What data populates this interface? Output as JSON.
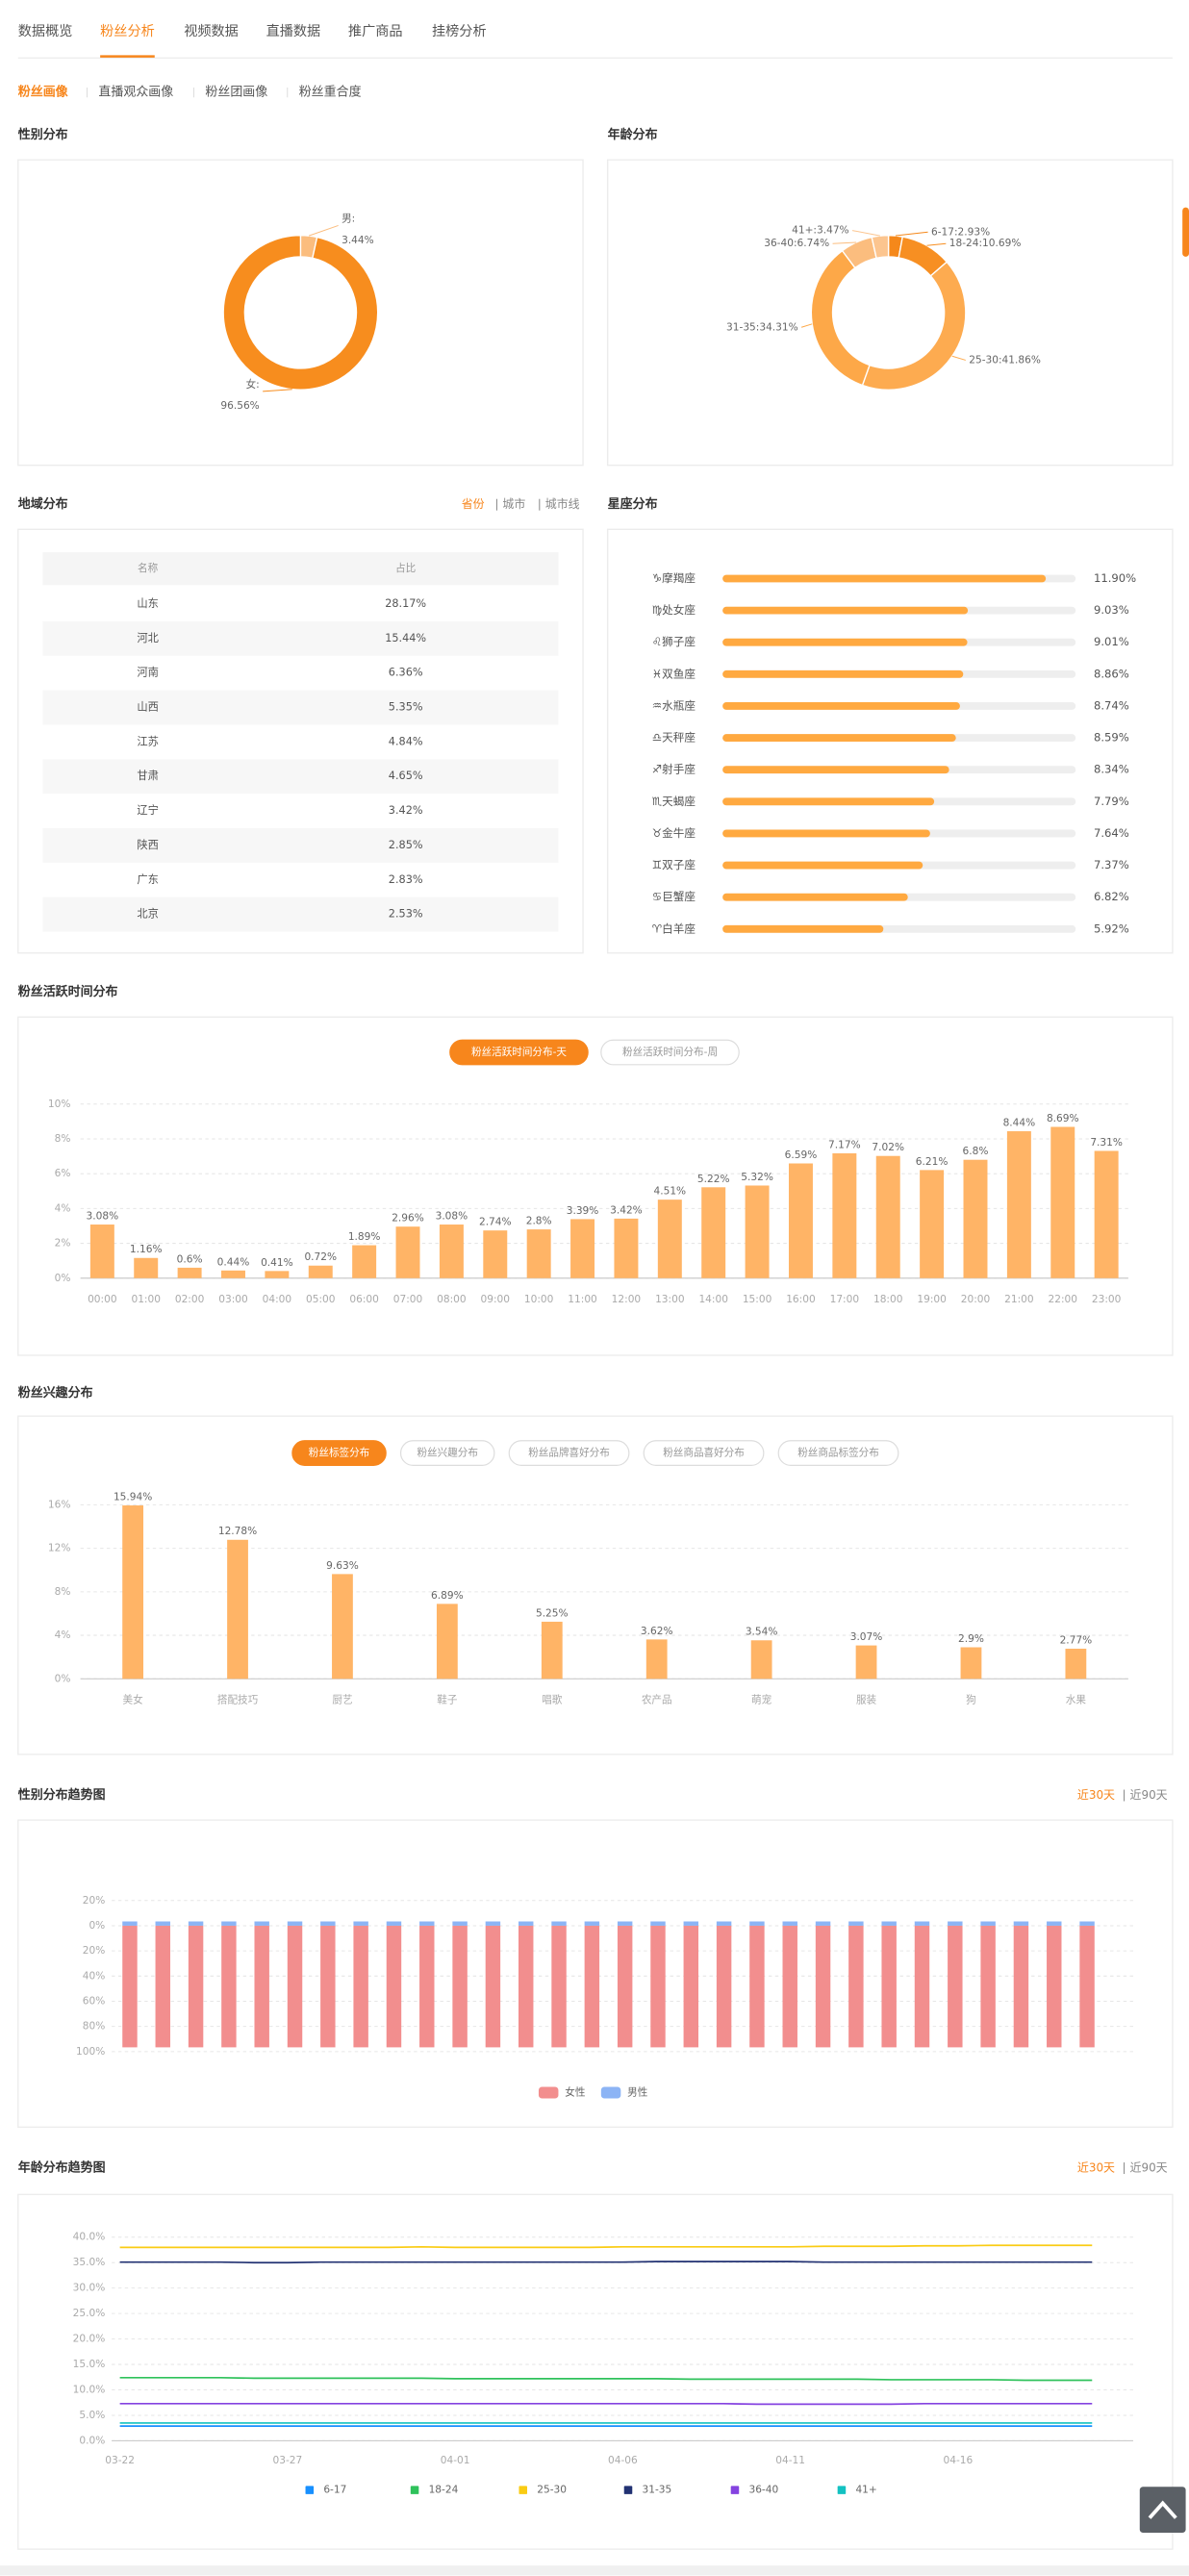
{
  "tabs": [
    {
      "label": "数据概览"
    },
    {
      "label": "粉丝分析",
      "active": true
    },
    {
      "label": "视频数据"
    },
    {
      "label": "直播数据"
    },
    {
      "label": "推广商品"
    },
    {
      "label": "挂榜分析"
    }
  ],
  "sub_tabs": [
    {
      "label": "粉丝画像",
      "active": true
    },
    {
      "label": "直播观众画像"
    },
    {
      "label": "粉丝团画像"
    },
    {
      "label": "粉丝重合度"
    }
  ],
  "chart_data": [
    {
      "type": "pie",
      "title": "性别分布",
      "categories": [
        "男:",
        "女:"
      ],
      "values": [
        3.44,
        96.56
      ],
      "value_labels": [
        "3.44%",
        "96.56%"
      ],
      "colors": [
        "#fbbd7e",
        "#f78d1e"
      ]
    },
    {
      "type": "pie",
      "title": "年龄分布",
      "values": [
        2.93,
        10.69,
        41.86,
        34.31,
        6.74,
        3.47
      ],
      "value_labels": [
        "6-17:2.93%",
        "18-24:10.69%",
        "25-30:41.86%",
        "31-35:34.31%",
        "36-40:6.74%",
        "41+:3.47%"
      ],
      "colors": [
        "#f5881a",
        "#f78f22",
        "#fdab50",
        "#fda848",
        "#fbbd7e",
        "#fcc58f"
      ]
    },
    {
      "type": "table",
      "title": "地域分布",
      "filters": [
        {
          "label": "省份",
          "active": true
        },
        {
          "label": "城市"
        },
        {
          "label": "城市线"
        }
      ],
      "columns": [
        "名称",
        "占比"
      ],
      "rows": [
        [
          "山东",
          "28.17%"
        ],
        [
          "河北",
          "15.44%"
        ],
        [
          "河南",
          "6.36%"
        ],
        [
          "山西",
          "5.35%"
        ],
        [
          "江苏",
          "4.84%"
        ],
        [
          "甘肃",
          "4.65%"
        ],
        [
          "辽宁",
          "3.42%"
        ],
        [
          "陕西",
          "2.85%"
        ],
        [
          "广东",
          "2.83%"
        ],
        [
          "北京",
          "2.53%"
        ]
      ]
    },
    {
      "type": "bar",
      "horizontal": true,
      "title": "星座分布",
      "categories": [
        "♑摩羯座",
        "♍处女座",
        "♌狮子座",
        "♓双鱼座",
        "♒水瓶座",
        "♎天秤座",
        "♐射手座",
        "♏天蝎座",
        "♉金牛座",
        "♊双子座",
        "♋巨蟹座",
        "♈白羊座"
      ],
      "values": [
        11.9,
        9.03,
        9.01,
        8.86,
        8.74,
        8.59,
        8.34,
        7.79,
        7.64,
        7.37,
        6.82,
        5.92
      ],
      "value_labels": [
        "11.90%",
        "9.03%",
        "9.01%",
        "8.86%",
        "8.74%",
        "8.59%",
        "8.34%",
        "7.79%",
        "7.64%",
        "7.37%",
        "6.82%",
        "5.92%"
      ],
      "xlim": [
        0,
        13
      ],
      "color": "#ffa940"
    },
    {
      "type": "bar",
      "title": "粉丝活跃时间分布",
      "toggles": [
        {
          "label": "粉丝活跃时间分布-天",
          "active": true
        },
        {
          "label": "粉丝活跃时间分布-周"
        }
      ],
      "categories": [
        "00:00",
        "01:00",
        "02:00",
        "03:00",
        "04:00",
        "05:00",
        "06:00",
        "07:00",
        "08:00",
        "09:00",
        "10:00",
        "11:00",
        "12:00",
        "13:00",
        "14:00",
        "15:00",
        "16:00",
        "17:00",
        "18:00",
        "19:00",
        "20:00",
        "21:00",
        "22:00",
        "23:00"
      ],
      "values": [
        3.08,
        1.16,
        0.6,
        0.44,
        0.41,
        0.72,
        1.89,
        2.96,
        3.08,
        2.74,
        2.8,
        3.39,
        3.42,
        4.51,
        5.22,
        5.32,
        6.59,
        7.17,
        7.02,
        6.21,
        6.8,
        8.44,
        8.69,
        7.31
      ],
      "value_labels": [
        "3.08%",
        "1.16%",
        "0.6%",
        "0.44%",
        "0.41%",
        "0.72%",
        "1.89%",
        "2.96%",
        "3.08%",
        "2.74%",
        "2.8%",
        "3.39%",
        "3.42%",
        "4.51%",
        "5.22%",
        "5.32%",
        "6.59%",
        "7.17%",
        "7.02%",
        "6.21%",
        "6.8%",
        "8.44%",
        "8.69%",
        "7.31%"
      ],
      "ylim": [
        0,
        10
      ],
      "yticks": [
        {
          "value": 0,
          "label": "0%"
        },
        {
          "value": 2,
          "label": "2%"
        },
        {
          "value": 4,
          "label": "4%"
        },
        {
          "value": 6,
          "label": "6%"
        },
        {
          "value": 8,
          "label": "8%"
        },
        {
          "value": 10,
          "label": "10%"
        }
      ],
      "grid": true,
      "color": "#ffb466"
    },
    {
      "type": "bar",
      "title": "粉丝兴趣分布",
      "toggles": [
        {
          "label": "粉丝标签分布",
          "active": true
        },
        {
          "label": "粉丝兴趣分布"
        },
        {
          "label": "粉丝品牌喜好分布"
        },
        {
          "label": "粉丝商品喜好分布"
        },
        {
          "label": "粉丝商品标签分布"
        }
      ],
      "categories": [
        "美女",
        "搭配技巧",
        "厨艺",
        "鞋子",
        "唱歌",
        "农产品",
        "萌宠",
        "服装",
        "狗",
        "水果"
      ],
      "values": [
        15.94,
        12.78,
        9.63,
        6.89,
        5.25,
        3.62,
        3.54,
        3.07,
        2.9,
        2.77
      ],
      "value_labels": [
        "15.94%",
        "12.78%",
        "9.63%",
        "6.89%",
        "5.25%",
        "3.62%",
        "3.54%",
        "3.07%",
        "2.9%",
        "2.77%"
      ],
      "ylim": [
        0,
        16
      ],
      "yticks": [
        {
          "value": 0,
          "label": "0%"
        },
        {
          "value": 4,
          "label": "4%"
        },
        {
          "value": 8,
          "label": "8%"
        },
        {
          "value": 12,
          "label": "12%"
        },
        {
          "value": 16,
          "label": "16%"
        }
      ],
      "grid": true,
      "color": "#ffb466"
    },
    {
      "type": "stacked_bar",
      "title": "性别分布趋势图",
      "toggles": [
        {
          "label": "近30天",
          "active": true
        },
        {
          "label": "近90天"
        }
      ],
      "categories": [
        null,
        null,
        null,
        null,
        null,
        null,
        null,
        null,
        null,
        null,
        null,
        null,
        null,
        null,
        null,
        null,
        null,
        null,
        null,
        null,
        null,
        null,
        null,
        null,
        null,
        null,
        null,
        null,
        null,
        null
      ],
      "series": [
        {
          "name": "女性",
          "color": "#f28e8e",
          "values": [
            -96.6,
            -96.6,
            -96.6,
            -96.6,
            -96.6,
            -96.6,
            -96.6,
            -96.6,
            -96.6,
            -96.6,
            -96.6,
            -96.6,
            -96.6,
            -96.6,
            -96.6,
            -96.6,
            -96.6,
            -96.6,
            -96.6,
            -96.6,
            -96.6,
            -96.6,
            -96.6,
            -96.6,
            -96.6,
            -96.6,
            -96.6,
            -96.6,
            -96.6,
            -96.6
          ]
        },
        {
          "name": "男性",
          "color": "#8cb4f5",
          "values": [
            3.4,
            3.4,
            3.4,
            3.4,
            3.4,
            3.4,
            3.4,
            3.4,
            3.4,
            3.4,
            3.4,
            3.4,
            3.4,
            3.4,
            3.4,
            3.4,
            3.4,
            3.4,
            3.4,
            3.4,
            3.4,
            3.4,
            3.4,
            3.4,
            3.4,
            3.4,
            3.4,
            3.4,
            3.4,
            3.4
          ]
        }
      ],
      "ylim": [
        -100,
        20
      ],
      "yticks": [
        {
          "value": 20,
          "label": "20%"
        },
        {
          "value": 0,
          "label": "0%"
        },
        {
          "value": -20,
          "label": "20%"
        },
        {
          "value": -40,
          "label": "40%"
        },
        {
          "value": -60,
          "label": "60%"
        },
        {
          "value": -80,
          "label": "80%"
        },
        {
          "value": -100,
          "label": "100%"
        }
      ],
      "grid": true
    },
    {
      "type": "line",
      "title": "年龄分布趋势图",
      "toggles": [
        {
          "label": "近30天",
          "active": true
        },
        {
          "label": "近90天"
        }
      ],
      "categories": [
        "03-22",
        null,
        null,
        null,
        null,
        "03-27",
        null,
        null,
        null,
        null,
        "04-01",
        null,
        null,
        null,
        null,
        "04-06",
        null,
        null,
        null,
        null,
        "04-11",
        null,
        null,
        null,
        null,
        "04-16",
        null,
        null,
        null,
        null
      ],
      "series": [
        {
          "name": "6-17",
          "color": "#1890ff",
          "values": [
            2.9,
            2.9,
            2.9,
            2.9,
            2.9,
            2.9,
            2.9,
            2.9,
            2.9,
            2.9,
            2.9,
            2.9,
            2.9,
            2.9,
            2.9,
            2.9,
            2.9,
            2.9,
            2.9,
            2.9,
            2.9,
            2.9,
            2.9,
            2.9,
            2.9,
            2.9,
            2.9,
            2.9,
            2.9,
            2.9
          ]
        },
        {
          "name": "18-24",
          "color": "#2fc25b",
          "values": [
            12.4,
            12.4,
            12.4,
            12.4,
            12.3,
            12.3,
            12.3,
            12.3,
            12.3,
            12.3,
            12.2,
            12.2,
            12.2,
            12.2,
            12.2,
            12.2,
            12.2,
            12.1,
            12.1,
            12.1,
            12.1,
            12.1,
            12.1,
            12.0,
            12.0,
            12.0,
            12.0,
            11.9,
            11.9,
            11.9
          ]
        },
        {
          "name": "25-30",
          "color": "#facc14",
          "values": [
            38.0,
            38.0,
            38.0,
            38.0,
            38.0,
            38.0,
            38.0,
            38.0,
            38.0,
            38.1,
            38.0,
            38.0,
            38.0,
            38.0,
            38.0,
            38.1,
            38.1,
            38.1,
            38.1,
            38.1,
            38.1,
            38.2,
            38.2,
            38.2,
            38.3,
            38.3,
            38.4,
            38.4,
            38.4,
            38.4
          ]
        },
        {
          "name": "31-35",
          "color": "#223273",
          "values": [
            35.1,
            35.1,
            35.1,
            35.1,
            35.0,
            35.0,
            35.1,
            35.1,
            35.1,
            35.1,
            35.1,
            35.1,
            35.1,
            35.1,
            35.1,
            35.1,
            35.2,
            35.2,
            35.2,
            35.2,
            35.2,
            35.1,
            35.1,
            35.1,
            35.1,
            35.1,
            35.1,
            35.1,
            35.1,
            35.1
          ]
        },
        {
          "name": "36-40",
          "color": "#8543e0",
          "values": [
            7.3,
            7.3,
            7.3,
            7.3,
            7.3,
            7.3,
            7.3,
            7.3,
            7.3,
            7.3,
            7.3,
            7.3,
            7.3,
            7.3,
            7.3,
            7.3,
            7.3,
            7.3,
            7.3,
            7.2,
            7.2,
            7.2,
            7.2,
            7.2,
            7.3,
            7.3,
            7.3,
            7.3,
            7.3,
            7.3
          ]
        },
        {
          "name": "41+",
          "color": "#13c2c2",
          "values": [
            3.5,
            3.5,
            3.5,
            3.5,
            3.5,
            3.5,
            3.5,
            3.5,
            3.5,
            3.5,
            3.5,
            3.5,
            3.5,
            3.5,
            3.5,
            3.5,
            3.5,
            3.5,
            3.5,
            3.5,
            3.5,
            3.5,
            3.5,
            3.5,
            3.5,
            3.5,
            3.5,
            3.5,
            3.5,
            3.5
          ]
        }
      ],
      "ylim": [
        0,
        40
      ],
      "yticks": [
        {
          "value": 0,
          "label": "0.0%"
        },
        {
          "value": 5,
          "label": "5.0%"
        },
        {
          "value": 10,
          "label": "10.0%"
        },
        {
          "value": 15,
          "label": "15.0%"
        },
        {
          "value": 20,
          "label": "20.0%"
        },
        {
          "value": 25,
          "label": "25.0%"
        },
        {
          "value": 30,
          "label": "30.0%"
        },
        {
          "value": 35,
          "label": "35.0%"
        },
        {
          "value": 40,
          "label": "40.0%"
        }
      ],
      "grid": true
    }
  ]
}
